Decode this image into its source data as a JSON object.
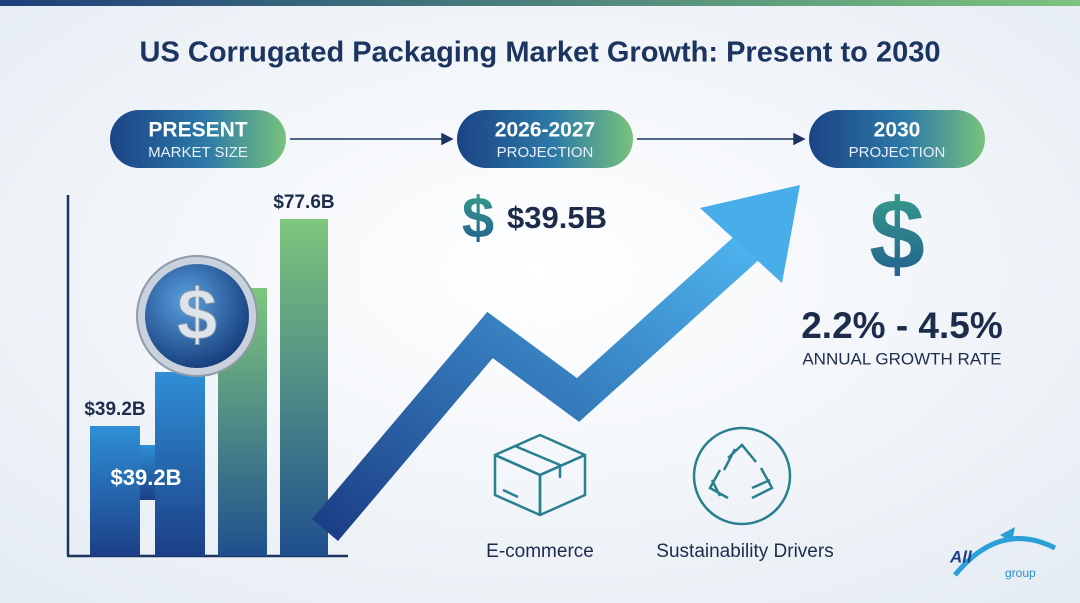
{
  "header": {
    "title": "US Corrugated Packaging Market Growth: Present to 2030"
  },
  "stages": [
    {
      "title": "PRESENT",
      "subtitle": "MARKET SIZE"
    },
    {
      "title": "2026-2027",
      "subtitle": "PROJECTION"
    },
    {
      "title": "2030",
      "subtitle": "PROJECTION"
    }
  ],
  "bars": {
    "coin_symbol": "$",
    "labels": [
      "$39.2B",
      "$39.2B",
      "$77.6B"
    ]
  },
  "projection": {
    "symbol": "$",
    "value": "$39.5B"
  },
  "growth": {
    "symbol": "$",
    "range": "2.2% - 4.5%",
    "label": "ANNUAL GROWTH RATE"
  },
  "drivers": [
    "E-commerce",
    "Sustainability Drivers"
  ],
  "logo": {
    "text": "All",
    "sub": "group"
  }
}
